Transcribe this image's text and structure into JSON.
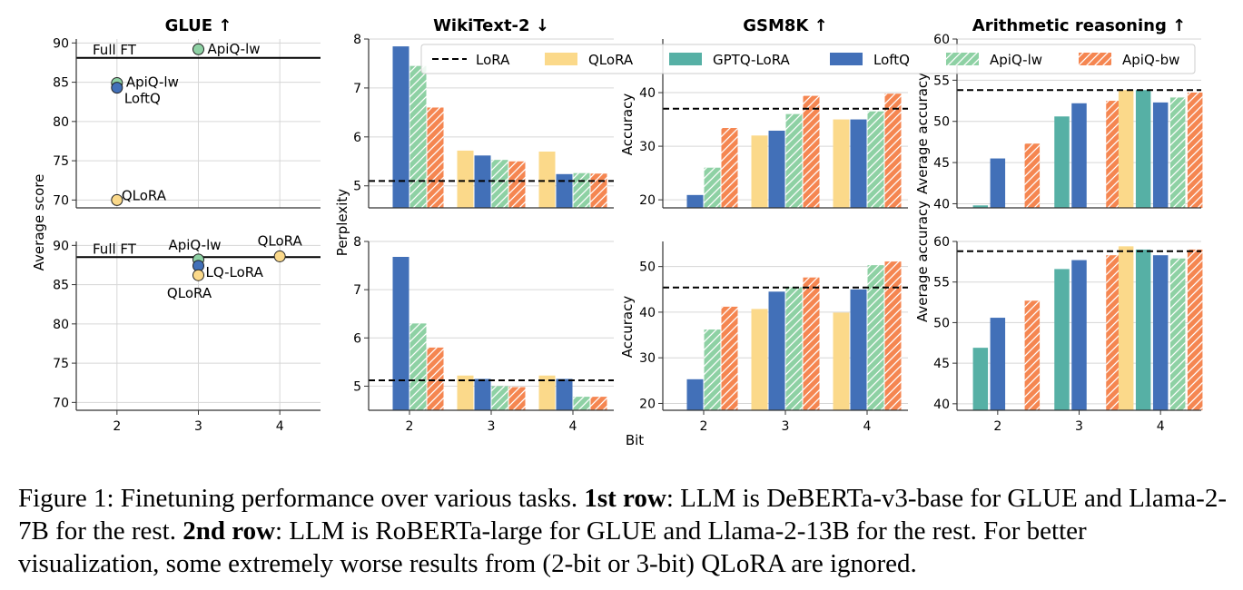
{
  "colors": {
    "qlora": "#FBD98A",
    "gptq": "#56B0A5",
    "loftq": "#4270B8",
    "apiq_lw": "#8ED1A4",
    "apiq_bw": "#F58651"
  },
  "legend": [
    {
      "key": "lora",
      "label": "LoRA",
      "style": "dashed"
    },
    {
      "key": "qlora",
      "label": "QLoRA"
    },
    {
      "key": "gptq",
      "label": "GPTQ-LoRA"
    },
    {
      "key": "loftq",
      "label": "LoftQ"
    },
    {
      "key": "apiq_lw",
      "label": "ApiQ-lw"
    },
    {
      "key": "apiq_bw",
      "label": "ApiQ-bw"
    }
  ],
  "shared_xlabel": "Bit",
  "caption": {
    "p1": "Figure 1: Finetuning performance over various tasks. ",
    "b1": "1st row",
    "p2": ": LLM is DeBERTa-v3-base for GLUE and Llama-2-7B for the rest. ",
    "b2": "2nd row",
    "p3": ": LLM is RoBERTa-large for GLUE and Llama-2-13B for the rest. For better visualization, some extremely worse results from (2-bit or 3-bit) QLoRA are ignored."
  },
  "chart_data": [
    {
      "id": "glue_top",
      "type": "scatter",
      "title": "GLUE ↑",
      "ylabel": "Average score",
      "xlim": [
        1.5,
        4.5
      ],
      "ylim": [
        69,
        90.5
      ],
      "yticks": [
        70,
        75,
        80,
        85,
        90
      ],
      "xticks": [],
      "grid": true,
      "hline": {
        "y": 88.1,
        "label": "Full FT"
      },
      "points": [
        {
          "x": 3,
          "y": 89.2,
          "label": "ApiQ-lw",
          "key": "apiq_lw"
        },
        {
          "x": 2,
          "y": 84.9,
          "label": "ApiQ-lw",
          "key": "apiq_lw"
        },
        {
          "x": 2,
          "y": 84.3,
          "label": "LoftQ",
          "key": "loftq"
        },
        {
          "x": 2,
          "y": 70.0,
          "label": "QLoRA",
          "key": "qlora"
        }
      ]
    },
    {
      "id": "glue_bot",
      "type": "scatter",
      "title": "",
      "ylabel": "",
      "xlim": [
        1.5,
        4.5
      ],
      "ylim": [
        69,
        90.5
      ],
      "yticks": [
        70,
        75,
        80,
        85,
        90
      ],
      "xticks": [
        "2",
        "3",
        "4"
      ],
      "grid": true,
      "hline": {
        "y": 88.5,
        "label": "Full FT"
      },
      "points": [
        {
          "x": 3,
          "y": 88.2,
          "label": "ApiQ-lw",
          "key": "apiq_lw"
        },
        {
          "x": 3,
          "y": 87.4,
          "label": "LQ-LoRA",
          "key": "loftq"
        },
        {
          "x": 3,
          "y": 86.2,
          "label": "QLoRA",
          "key": "qlora"
        },
        {
          "x": 4,
          "y": 88.6,
          "label": "QLoRA",
          "key": "qlora"
        }
      ]
    },
    {
      "id": "wiki_top",
      "type": "bar",
      "title": "WikiText-2 ↓",
      "ylabel": "Perplexity",
      "categories": [
        "2",
        "3",
        "4"
      ],
      "ylim": [
        4.55,
        8.0
      ],
      "yticks": [
        5,
        6,
        7,
        8
      ],
      "lora": 5.1,
      "show_xticks": false,
      "series": [
        {
          "key": "qlora",
          "values": [
            null,
            5.72,
            5.7
          ]
        },
        {
          "key": "loftq",
          "values": [
            7.85,
            5.62,
            5.24
          ]
        },
        {
          "key": "apiq_lw",
          "values": [
            7.45,
            5.53,
            5.26
          ]
        },
        {
          "key": "apiq_bw",
          "values": [
            6.6,
            5.5,
            5.25
          ]
        }
      ]
    },
    {
      "id": "wiki_bot",
      "type": "bar",
      "title": "",
      "ylabel": "",
      "categories": [
        "2",
        "3",
        "4"
      ],
      "ylim": [
        4.5,
        8.0
      ],
      "yticks": [
        5,
        6,
        7,
        8
      ],
      "lora": 5.12,
      "show_xticks": true,
      "series": [
        {
          "key": "qlora",
          "values": [
            null,
            5.22,
            5.22
          ]
        },
        {
          "key": "loftq",
          "values": [
            7.68,
            5.15,
            5.15
          ]
        },
        {
          "key": "apiq_lw",
          "values": [
            6.3,
            5.0,
            4.78
          ]
        },
        {
          "key": "apiq_bw",
          "values": [
            5.8,
            4.98,
            4.78
          ]
        }
      ]
    },
    {
      "id": "gsm_top",
      "type": "bar",
      "title": "GSM8K ↑",
      "ylabel": "Accuracy",
      "categories": [
        "2",
        "3",
        "4"
      ],
      "ylim": [
        18.5,
        50
      ],
      "yticks": [
        20,
        30,
        40
      ],
      "lora": 37.0,
      "show_xticks": false,
      "series": [
        {
          "key": "qlora",
          "values": [
            null,
            32.0,
            35.0
          ]
        },
        {
          "key": "loftq",
          "values": [
            20.9,
            32.9,
            35.0
          ]
        },
        {
          "key": "apiq_lw",
          "values": [
            26.0,
            36.0,
            36.5
          ]
        },
        {
          "key": "apiq_bw",
          "values": [
            33.4,
            39.4,
            39.8
          ]
        }
      ]
    },
    {
      "id": "gsm_bot",
      "type": "bar",
      "title": "",
      "ylabel": "Accuracy",
      "categories": [
        "2",
        "3",
        "4"
      ],
      "ylim": [
        18.5,
        55.5
      ],
      "yticks": [
        20,
        30,
        40,
        50
      ],
      "lora": 45.4,
      "show_xticks": true,
      "series": [
        {
          "key": "qlora",
          "values": [
            null,
            40.7,
            39.9
          ]
        },
        {
          "key": "loftq",
          "values": [
            25.3,
            44.5,
            45.0
          ]
        },
        {
          "key": "apiq_lw",
          "values": [
            36.2,
            45.5,
            50.3
          ]
        },
        {
          "key": "apiq_bw",
          "values": [
            41.2,
            47.6,
            51.1
          ]
        }
      ]
    },
    {
      "id": "arith_top",
      "type": "bar",
      "title": "Arithmetic reasoning ↑",
      "ylabel": "Average accuracy",
      "categories": [
        "2",
        "3",
        "4"
      ],
      "ylim": [
        39.5,
        60
      ],
      "yticks": [
        40,
        45,
        50,
        55,
        60
      ],
      "lora": 53.8,
      "show_xticks": false,
      "series": [
        {
          "key": "qlora",
          "values": [
            null,
            null,
            53.8
          ]
        },
        {
          "key": "gptq",
          "values": [
            39.8,
            50.6,
            53.8
          ]
        },
        {
          "key": "loftq",
          "values": [
            45.5,
            52.2,
            52.3
          ]
        },
        {
          "key": "apiq_lw",
          "values": [
            null,
            null,
            52.9
          ]
        },
        {
          "key": "apiq_bw",
          "values": [
            47.3,
            52.5,
            53.5
          ]
        }
      ]
    },
    {
      "id": "arith_bot",
      "type": "bar",
      "title": "",
      "ylabel": "Average accuracy",
      "categories": [
        "2",
        "3",
        "4"
      ],
      "ylim": [
        39.2,
        60
      ],
      "yticks": [
        40,
        45,
        50,
        55,
        60
      ],
      "lora": 58.8,
      "show_xticks": true,
      "series": [
        {
          "key": "qlora",
          "values": [
            null,
            null,
            59.4
          ]
        },
        {
          "key": "gptq",
          "values": [
            46.9,
            56.6,
            59.0
          ]
        },
        {
          "key": "loftq",
          "values": [
            50.6,
            57.7,
            58.3
          ]
        },
        {
          "key": "apiq_lw",
          "values": [
            null,
            null,
            57.9
          ]
        },
        {
          "key": "apiq_bw",
          "values": [
            52.7,
            58.3,
            59.0
          ]
        }
      ]
    }
  ]
}
